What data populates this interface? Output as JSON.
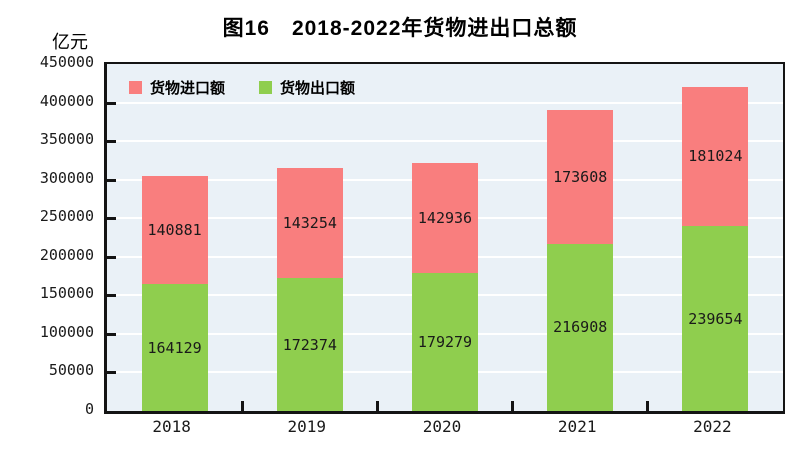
{
  "chart_data": {
    "type": "bar",
    "stacked": true,
    "title": "图16　2018-2022年货物进出口总额",
    "unit_label": "亿元",
    "categories": [
      "2018",
      "2019",
      "2020",
      "2021",
      "2022"
    ],
    "series": [
      {
        "name": "货物出口额",
        "color": "#8FCE4E",
        "values": [
          164129,
          172374,
          179279,
          216908,
          239654
        ]
      },
      {
        "name": "货物进口额",
        "color": "#F97E7E",
        "values": [
          140881,
          143254,
          142936,
          173608,
          181024
        ]
      }
    ],
    "legend": [
      {
        "label": "货物进口额",
        "color": "#F97E7E"
      },
      {
        "label": "货物出口额",
        "color": "#8FCE4E"
      }
    ],
    "legend_position": "top-left-inside",
    "ylim": [
      0,
      450000
    ],
    "ytick_step": 50000,
    "yticks": [
      "0",
      "50000",
      "100000",
      "150000",
      "200000",
      "250000",
      "300000",
      "350000",
      "400000",
      "450000"
    ],
    "grid": true,
    "plot_bg": "#EAF1F7",
    "gridline_color": "#FFFFFF",
    "axis_color": "#141414",
    "label_color": "#1a1a1a"
  }
}
